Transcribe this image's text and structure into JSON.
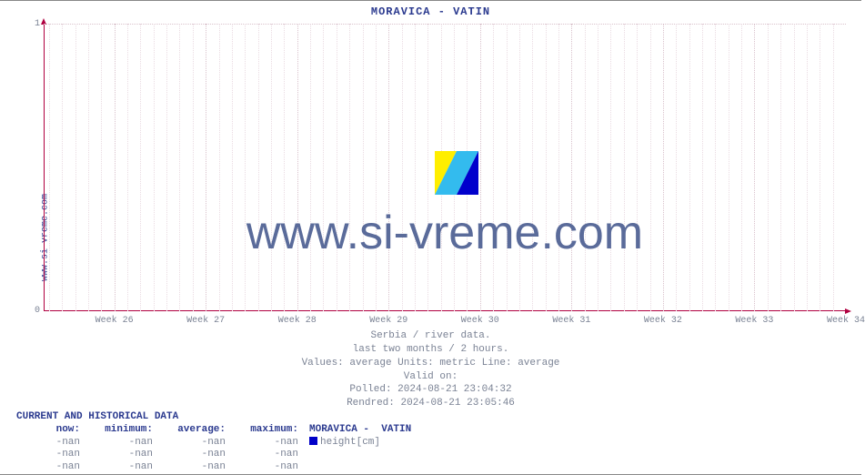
{
  "title": "MORAVICA -  VATIN",
  "vertical_label": "www.si-vreme.com",
  "watermark": "www.si-vreme.com",
  "chart": {
    "type": "line",
    "ylim": [
      0,
      1
    ],
    "yticks": [
      0,
      1
    ],
    "ytick_labels": [
      "0",
      "1"
    ],
    "xtick_labels": [
      "Week 26",
      "Week 27",
      "Week 28",
      "Week 29",
      "Week 30",
      "Week 31",
      "Week 32",
      "Week 33",
      "Week 34"
    ],
    "xtick_positions_pct": [
      8.8,
      20.2,
      31.6,
      43.0,
      54.4,
      65.8,
      77.2,
      88.6,
      100.0
    ],
    "grid_minor_per_major": 7,
    "background_color": "#ffffff",
    "axis_color": "#b00040",
    "grid_color": "#d9c2cc",
    "title_fontsize": 12,
    "tick_fontsize": 10,
    "series": []
  },
  "caption": {
    "line1": "Serbia / river data.",
    "line2": "last two months / 2 hours.",
    "line3": "Values: average  Units: metric  Line: average",
    "line4": "Valid on:",
    "line5": "Polled: 2024-08-21 23:04:32",
    "line6": "Rendred: 2024-08-21 23:05:46"
  },
  "data_table": {
    "header": "CURRENT AND HISTORICAL DATA",
    "columns": {
      "now": "now:",
      "min": "minimum:",
      "avg": "average:",
      "max": "maximum:"
    },
    "legend_label": "MORAVICA -  VATIN",
    "legend_unit": "height[cm]",
    "legend_color": "#0000c8",
    "rows": [
      {
        "now": "-nan",
        "min": "-nan",
        "avg": "-nan",
        "max": "-nan"
      },
      {
        "now": "-nan",
        "min": "-nan",
        "avg": "-nan",
        "max": "-nan"
      },
      {
        "now": "-nan",
        "min": "-nan",
        "avg": "-nan",
        "max": "-nan"
      }
    ]
  },
  "colors": {
    "title": "#2b3a8f",
    "text_muted": "#7a8294",
    "watermark": "#5a6b9a"
  }
}
